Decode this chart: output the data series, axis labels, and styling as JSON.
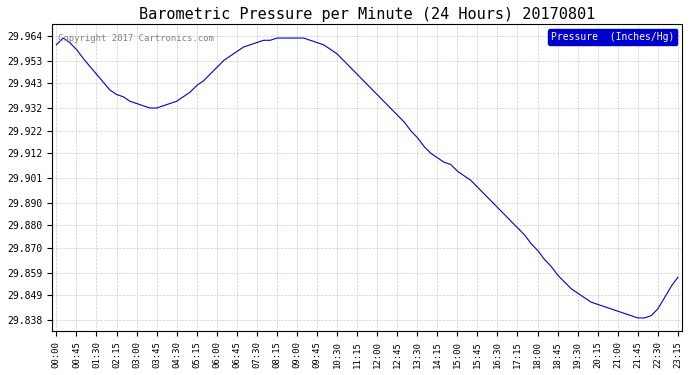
{
  "title": "Barometric Pressure per Minute (24 Hours) 20170801",
  "copyright_text": "Copyright 2017 Cartronics.com",
  "legend_label": "Pressure  (Inches/Hg)",
  "line_color": "#0000cc",
  "background_color": "#ffffff",
  "grid_color": "#cccccc",
  "yticks": [
    29.838,
    29.849,
    29.859,
    29.87,
    29.88,
    29.89,
    29.901,
    29.912,
    29.922,
    29.932,
    29.943,
    29.953,
    29.964
  ],
  "ylim": [
    29.833,
    29.969
  ],
  "xtick_labels": [
    "00:00",
    "00:45",
    "01:30",
    "02:15",
    "03:00",
    "03:45",
    "04:30",
    "05:15",
    "06:00",
    "06:45",
    "07:30",
    "08:15",
    "09:00",
    "09:45",
    "10:30",
    "11:15",
    "12:00",
    "12:45",
    "13:30",
    "14:15",
    "15:00",
    "15:45",
    "16:30",
    "17:15",
    "18:00",
    "18:45",
    "19:30",
    "20:15",
    "21:00",
    "21:45",
    "22:30",
    "23:15"
  ],
  "wp_x": [
    0,
    15,
    30,
    45,
    60,
    90,
    120,
    135,
    150,
    165,
    180,
    210,
    225,
    240,
    255,
    270,
    285,
    300,
    315,
    330,
    345,
    360,
    375,
    390,
    405,
    420,
    435,
    450,
    465,
    480,
    495,
    510,
    525,
    540,
    555,
    570,
    585,
    600,
    615,
    630,
    645,
    660,
    675,
    690,
    705,
    720,
    735,
    750,
    765,
    780,
    795,
    810,
    825,
    840,
    855,
    870,
    885,
    900,
    915,
    930,
    945,
    960,
    975,
    990,
    1005,
    1020,
    1035,
    1050,
    1065,
    1080,
    1095,
    1110,
    1125,
    1140,
    1155,
    1170,
    1185,
    1200,
    1215,
    1230,
    1245,
    1260,
    1275,
    1290,
    1305,
    1320,
    1335,
    1350,
    1365,
    1380,
    1395
  ],
  "wp_y": [
    29.96,
    29.963,
    29.961,
    29.958,
    29.954,
    29.947,
    29.94,
    29.938,
    29.937,
    29.935,
    29.934,
    29.932,
    29.932,
    29.933,
    29.934,
    29.935,
    29.937,
    29.939,
    29.942,
    29.944,
    29.947,
    29.95,
    29.953,
    29.955,
    29.957,
    29.959,
    29.96,
    29.961,
    29.962,
    29.962,
    29.963,
    29.963,
    29.963,
    29.963,
    29.963,
    29.962,
    29.961,
    29.96,
    29.958,
    29.956,
    29.953,
    29.95,
    29.947,
    29.944,
    29.941,
    29.938,
    29.935,
    29.932,
    29.929,
    29.926,
    29.922,
    29.919,
    29.915,
    29.912,
    29.91,
    29.908,
    29.907,
    29.904,
    29.902,
    29.9,
    29.897,
    29.894,
    29.891,
    29.888,
    29.885,
    29.882,
    29.879,
    29.876,
    29.872,
    29.869,
    29.865,
    29.862,
    29.858,
    29.855,
    29.852,
    29.85,
    29.848,
    29.846,
    29.845,
    29.844,
    29.843,
    29.842,
    29.841,
    29.84,
    29.839,
    29.839,
    29.84,
    29.843,
    29.848,
    29.853,
    29.857
  ]
}
